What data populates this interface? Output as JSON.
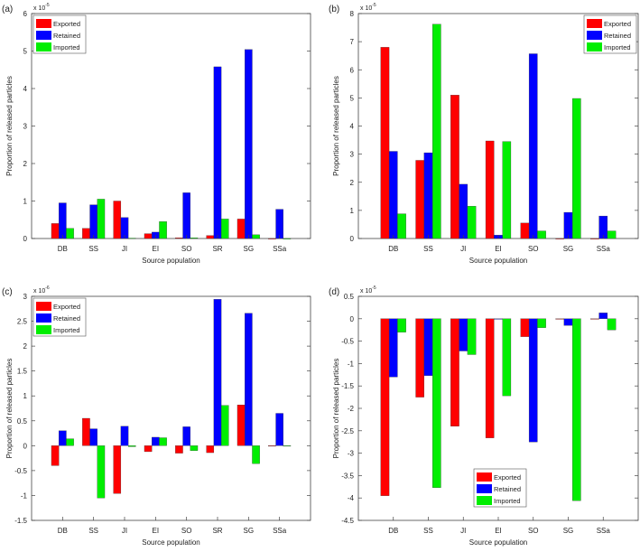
{
  "colors": {
    "Exported": "#ff0000",
    "Retained": "#0000ff",
    "Imported": "#00ee00"
  },
  "chart_data": [
    {
      "panel_label": "(a)",
      "type": "bar",
      "exponent_label": "x 10",
      "exponent": "-5",
      "xlabel": "Source population",
      "ylabel": "Proportion of released particles",
      "categories": [
        "DB",
        "SS",
        "JI",
        "EI",
        "SO",
        "SR",
        "SG",
        "SSa"
      ],
      "ylim": [
        0,
        6
      ],
      "yticks": [
        0,
        1,
        2,
        3,
        4,
        5,
        6
      ],
      "legend_position": "top-left",
      "series": [
        {
          "name": "Exported",
          "values": [
            0.4,
            0.27,
            1.0,
            0.13,
            0.02,
            0.08,
            0.52,
            0
          ]
        },
        {
          "name": "Retained",
          "values": [
            0.95,
            0.9,
            0.56,
            0.17,
            1.22,
            4.58,
            5.04,
            0.78
          ]
        },
        {
          "name": "Imported",
          "values": [
            0.27,
            1.05,
            0.01,
            0.45,
            0.02,
            0.52,
            0.1,
            0
          ]
        }
      ]
    },
    {
      "panel_label": "(b)",
      "type": "bar",
      "exponent_label": "x 10",
      "exponent": "-5",
      "xlabel": "Source population",
      "ylabel": "Proportion of released particles",
      "categories": [
        "DB",
        "SS",
        "JI",
        "EI",
        "SO",
        "SG",
        "SSa"
      ],
      "ylim": [
        0,
        8
      ],
      "yticks": [
        0,
        1,
        2,
        3,
        4,
        5,
        6,
        7,
        8
      ],
      "legend_position": "top-right",
      "series": [
        {
          "name": "Exported",
          "values": [
            6.8,
            2.78,
            5.1,
            3.47,
            0.55,
            0,
            0
          ]
        },
        {
          "name": "Retained",
          "values": [
            3.1,
            3.05,
            1.93,
            0.12,
            6.57,
            0.93,
            0.8
          ]
        },
        {
          "name": "Imported",
          "values": [
            0.88,
            7.62,
            1.15,
            3.45,
            0.27,
            4.98,
            0.27
          ]
        }
      ]
    },
    {
      "panel_label": "(c)",
      "type": "bar",
      "exponent_label": "x 10",
      "exponent": "-6",
      "xlabel": "Source population",
      "ylabel": "Proportion of released particles",
      "categories": [
        "DB",
        "SS",
        "JI",
        "EI",
        "SO",
        "SR",
        "SG",
        "SSa"
      ],
      "ylim": [
        -1.5,
        3
      ],
      "yticks": [
        -1.5,
        -1,
        -0.5,
        0,
        0.5,
        1,
        1.5,
        2,
        2.5,
        3
      ],
      "legend_position": "top-left",
      "series": [
        {
          "name": "Exported",
          "values": [
            -0.4,
            0.55,
            -0.96,
            -0.12,
            -0.15,
            -0.14,
            0.82,
            0
          ]
        },
        {
          "name": "Retained",
          "values": [
            0.3,
            0.34,
            0.39,
            0.17,
            0.38,
            2.94,
            2.66,
            0.65
          ]
        },
        {
          "name": "Imported",
          "values": [
            0.14,
            -1.05,
            -0.02,
            0.16,
            -0.1,
            0.81,
            -0.36,
            0
          ]
        }
      ]
    },
    {
      "panel_label": "(d)",
      "type": "bar",
      "exponent_label": "x 10",
      "exponent": "-5",
      "xlabel": "Source population",
      "ylabel": "Proportion of released particles",
      "categories": [
        "DB",
        "SS",
        "JI",
        "EI",
        "SO",
        "SG",
        "SSa"
      ],
      "ylim": [
        -4.5,
        0.5
      ],
      "yticks": [
        -4.5,
        -4,
        -3.5,
        -3,
        -2.5,
        -2,
        -1.5,
        -1,
        -0.5,
        0,
        0.5
      ],
      "legend_position": "bottom-center",
      "series": [
        {
          "name": "Exported",
          "values": [
            -3.95,
            -1.75,
            -2.4,
            -2.66,
            -0.4,
            0,
            0
          ]
        },
        {
          "name": "Retained",
          "values": [
            -1.3,
            -1.27,
            -0.72,
            0,
            -2.75,
            -0.15,
            0.13
          ]
        },
        {
          "name": "Imported",
          "values": [
            -0.3,
            -3.77,
            -0.8,
            -1.72,
            -0.2,
            -4.06,
            -0.25
          ]
        }
      ]
    }
  ]
}
